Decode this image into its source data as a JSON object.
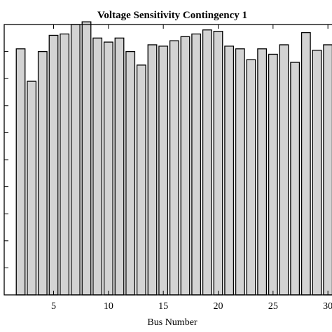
{
  "chart_data": {
    "type": "bar",
    "title": "Voltage Sensitivity Contingency 1",
    "xlabel": "Bus Number",
    "ylabel": "",
    "x_ticks": [
      5,
      10,
      15,
      20,
      25,
      30
    ],
    "x_tick_labels": [
      "5",
      "10",
      "15",
      "20",
      "25",
      "30"
    ],
    "xlim": [
      0.5,
      30.5
    ],
    "ylim": [
      0,
      10
    ],
    "y_tick_values": [
      1,
      2,
      3,
      4,
      5,
      6,
      7,
      8,
      9
    ],
    "categories": [
      2,
      3,
      4,
      5,
      6,
      7,
      8,
      9,
      10,
      11,
      12,
      13,
      14,
      15,
      16,
      17,
      18,
      19,
      20,
      21,
      22,
      23,
      24,
      25,
      26,
      27,
      28,
      29,
      30
    ],
    "values": [
      9.1,
      7.9,
      9.0,
      9.6,
      9.65,
      10.0,
      10.1,
      9.5,
      9.35,
      9.5,
      9.0,
      8.5,
      9.25,
      9.2,
      9.4,
      9.55,
      9.65,
      9.8,
      9.75,
      9.2,
      9.1,
      8.7,
      9.1,
      8.9,
      9.25,
      8.6,
      9.7,
      9.05,
      9.25
    ],
    "grid": false,
    "legend": "none",
    "bar_fill": "#d3d3d3",
    "bar_edge": "#000000"
  }
}
